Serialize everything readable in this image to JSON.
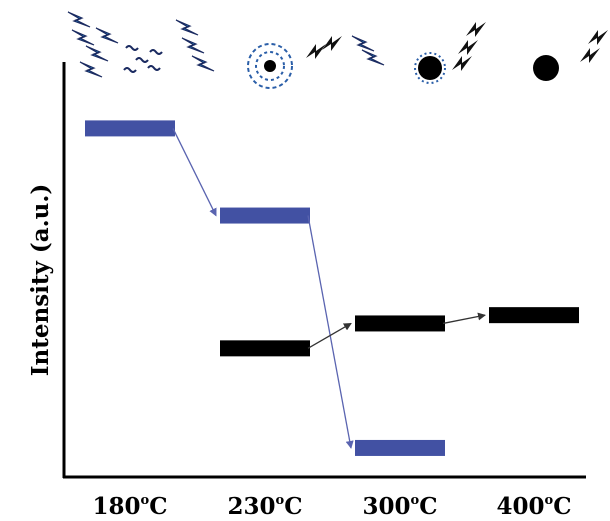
{
  "chart_data": {
    "type": "bar",
    "ylabel": "Intensity (a.u.)",
    "categories": [
      {
        "base": "180",
        "sup": "o",
        "unit": "C"
      },
      {
        "base": "230",
        "sup": "o",
        "unit": "C"
      },
      {
        "base": "300",
        "sup": "o",
        "unit": "C"
      },
      {
        "base": "400",
        "sup": "o",
        "unit": "C"
      }
    ],
    "ylim": [
      0,
      100
    ],
    "grid": false,
    "series": [
      {
        "color": "#4251a3",
        "values": [
          84,
          63,
          7,
          null
        ]
      },
      {
        "color": "#000000",
        "values": [
          null,
          31,
          37,
          39
        ]
      }
    ]
  }
}
